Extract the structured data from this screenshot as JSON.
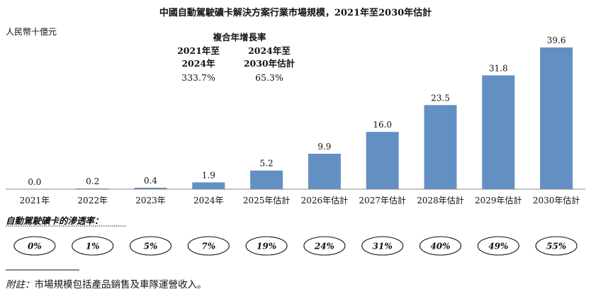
{
  "chart_data": {
    "type": "bar",
    "title": "中國自動駕駛礦卡解決方案行業市場規模，2021年至2030年估計",
    "ylabel": "人民幣十億元",
    "categories": [
      "2021年",
      "2022年",
      "2023年",
      "2024年",
      "2025年估計",
      "2026年估計",
      "2027年估計",
      "2028年估計",
      "2029年估計",
      "2030年估計"
    ],
    "values": [
      0.0,
      0.2,
      0.4,
      1.9,
      5.2,
      9.9,
      16.0,
      23.5,
      31.8,
      39.6
    ],
    "value_labels": [
      "0.0",
      "0.2",
      "0.4",
      "1.9",
      "5.2",
      "9.9",
      "16.0",
      "23.5",
      "31.8",
      "39.6"
    ],
    "ylim": [
      0,
      39.6
    ],
    "bar_color": "#6390c3",
    "cagr": {
      "heading": "複合年增長率",
      "periods": [
        {
          "line1": "2021年至",
          "line2": "2024年",
          "value": "333.7%"
        },
        {
          "line1": "2024年至",
          "line2": "2030年估計",
          "value": "65.3%"
        }
      ]
    },
    "penetration": {
      "title": "自動駕駛礦卡的滲透率：",
      "values": [
        "0%",
        "1%",
        "5%",
        "7%",
        "19%",
        "24%",
        "31%",
        "40%",
        "49%",
        "55%"
      ]
    }
  },
  "footnote": {
    "label": "附註：",
    "text": "市場規模包括產品銷售及車隊運營收入。"
  }
}
